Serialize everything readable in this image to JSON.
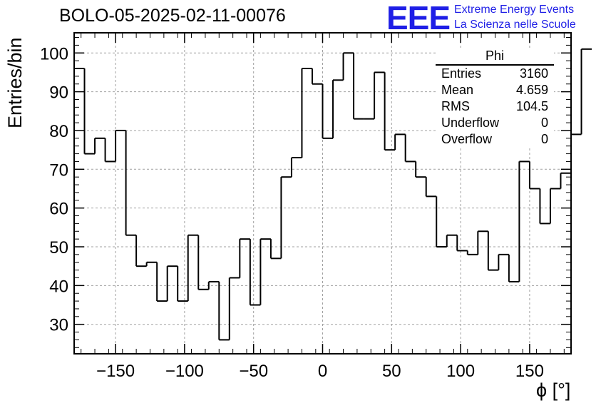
{
  "header": {
    "title": "BOLO-05-2025-02-11-00076"
  },
  "logo": {
    "letters": "EEE",
    "line1": "Extreme Energy Events",
    "line2": "La Scienza nelle Scuole",
    "color": "#1f1fe6"
  },
  "stats_box": {
    "title": "Phi",
    "rows": [
      {
        "label": "Entries",
        "value": "3160"
      },
      {
        "label": "Mean",
        "value": "4.659"
      },
      {
        "label": "RMS",
        "value": "104.5"
      },
      {
        "label": "Underflow",
        "value": "0"
      },
      {
        "label": "Overflow",
        "value": "0"
      }
    ]
  },
  "chart_data": {
    "type": "histogram",
    "title": "BOLO-05-2025-02-11-00076",
    "xlabel": "ϕ [°]",
    "ylabel": "Entries/bin",
    "xlim": [
      -180,
      180
    ],
    "ylim": [
      22.4,
      105.2
    ],
    "bin_edges_start": -180,
    "bin_width": 7.5,
    "values": [
      96,
      74,
      78,
      72,
      80,
      53,
      45,
      46,
      36,
      45,
      36,
      53,
      39,
      41,
      26,
      42,
      52,
      35,
      52,
      47,
      68,
      73,
      96,
      92,
      78,
      93,
      100,
      83,
      83,
      95,
      75,
      79,
      72,
      68,
      63,
      50,
      53,
      49,
      48,
      54,
      44,
      48,
      41,
      72,
      65,
      56,
      65,
      69,
      79,
      101
    ],
    "xticks": [
      -150,
      -100,
      -50,
      0,
      50,
      100,
      150
    ],
    "xtick_labels": [
      "−150",
      "−100",
      "−50",
      "0",
      "50",
      "100",
      "150"
    ],
    "yticks": [
      30,
      40,
      50,
      60,
      70,
      80,
      90,
      100
    ],
    "ytick_labels": [
      "30",
      "40",
      "50",
      "60",
      "70",
      "80",
      "90",
      "100"
    ],
    "grid": true,
    "line_color": "#000000"
  }
}
